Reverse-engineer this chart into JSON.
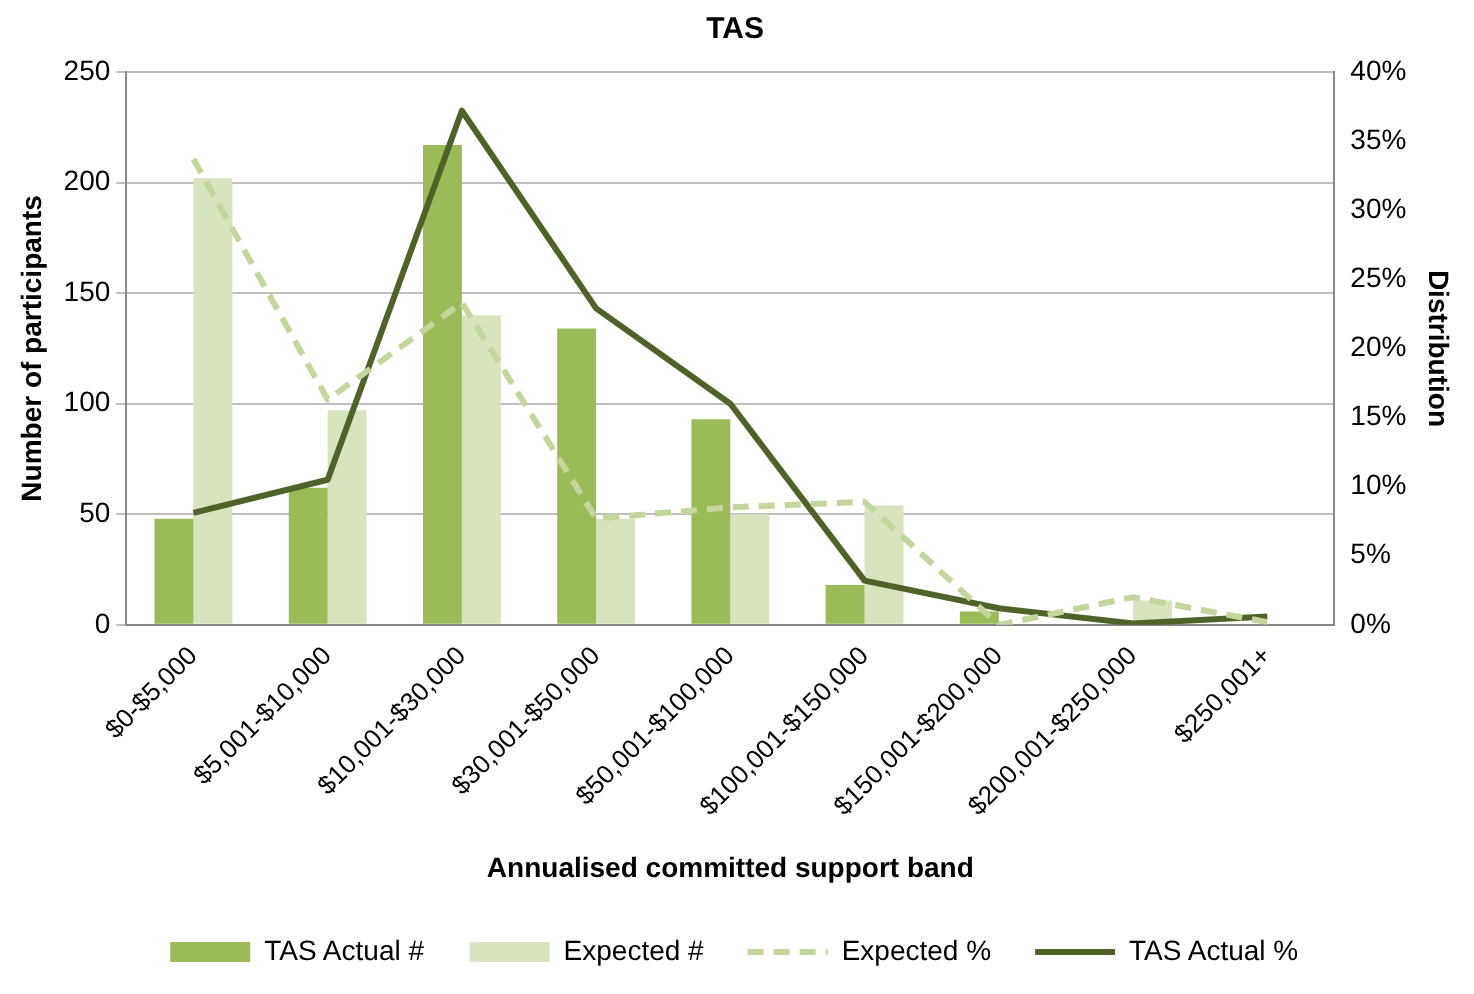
{
  "chart_data": {
    "type": "bar",
    "title": "TAS",
    "xlabel": "Annualised committed support band",
    "ylabel": "Number of participants",
    "y2label": "Distribution",
    "categories": [
      "$0-$5,000",
      "$5,001-$10,000",
      "$10,001-$30,000",
      "$30,001-$50,000",
      "$50,001-$100,000",
      "$100,001-$150,000",
      "$150,001-$200,000",
      "$200,001-$250,000",
      "$250,001+"
    ],
    "series": [
      {
        "name": "TAS Actual #",
        "color": "#9bbb59",
        "values": [
          48,
          62,
          217,
          134,
          93,
          18,
          6,
          0,
          null
        ]
      },
      {
        "name": "Expected #",
        "color": "#d7e4bd",
        "values": [
          202,
          97,
          140,
          48,
          50,
          54,
          0,
          11,
          null
        ]
      },
      {
        "name": "Expected %",
        "type": "line",
        "axis": "y2",
        "color": "#c3d69b",
        "line_style": "dashed",
        "values": [
          33.7,
          16.3,
          23.3,
          7.7,
          8.5,
          8.9,
          0,
          2,
          0.2
        ]
      },
      {
        "name": "TAS Actual %",
        "type": "line",
        "axis": "y2",
        "color": "#4f6228",
        "line_style": "solid",
        "values": [
          8.1,
          10.5,
          37.2,
          22.9,
          16,
          3.2,
          1.2,
          0.1,
          0.6
        ]
      }
    ],
    "ylim": [
      0,
      250
    ],
    "yticks": [
      0,
      50,
      100,
      150,
      200,
      250
    ],
    "y2lim": [
      0,
      40
    ],
    "y2ticks": [
      {
        "value": 0,
        "label": "0%"
      },
      {
        "value": 5,
        "label": "5%"
      },
      {
        "value": 10,
        "label": "10%"
      },
      {
        "value": 15,
        "label": "15%"
      },
      {
        "value": 20,
        "label": "20%"
      },
      {
        "value": 25,
        "label": "25%"
      },
      {
        "value": 30,
        "label": "30%"
      },
      {
        "value": 35,
        "label": "35%"
      },
      {
        "value": 40,
        "label": "40%"
      }
    ],
    "grid": "y",
    "legend": "bottom",
    "marker": "none"
  }
}
